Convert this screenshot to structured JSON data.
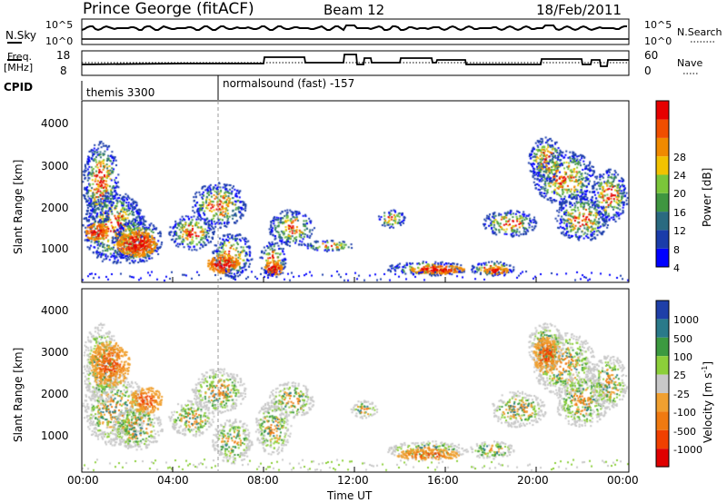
{
  "header": {
    "station": "Prince George (fitACF)",
    "beam": "Beam 12",
    "date": "18/Feb/2011"
  },
  "panels": {
    "nsky": {
      "left_label": "N.Sky",
      "top_tick": "10^5",
      "bottom_tick": "10^0",
      "right_top": "10^5",
      "right_bottom": "10^0",
      "right_label": "N.Search"
    },
    "freq": {
      "left_label_1": "Freq.",
      "left_label_2": "[MHz]",
      "top_tick": "18",
      "bottom_tick": "8",
      "right_top": "60",
      "right_bottom": "0",
      "right_label": "Nave"
    },
    "cpid": {
      "label": "CPID",
      "modes": [
        "themis 3300",
        "normalsound (fast) -157"
      ]
    }
  },
  "chart_data": [
    {
      "type": "heatmap",
      "title": "Power",
      "ylabel": "Slant Range [km]",
      "xlabel": "Time UT",
      "ylim": [
        180,
        4600
      ],
      "y_ticks": [
        "1000",
        "2000",
        "3000",
        "4000"
      ],
      "x_ticks": [
        "00:00",
        "04:00",
        "08:00",
        "12:00",
        "16:00",
        "20:00",
        "00:00"
      ],
      "colorbar_label": "Power [dB]",
      "colorbar_ticks": [
        "4",
        "8",
        "12",
        "16",
        "20",
        "24",
        "28"
      ],
      "colorbar_colors": [
        "#0000ff",
        "#1a3caa",
        "#2a6a80",
        "#3f9640",
        "#7bc63a",
        "#f2c200",
        "#f08a00",
        "#f04e00",
        "#e60000"
      ]
    },
    {
      "type": "heatmap",
      "title": "Velocity",
      "ylabel": "Slant Range [km]",
      "xlabel": "Time UT",
      "ylim": [
        180,
        4600
      ],
      "y_ticks": [
        "1000",
        "2000",
        "3000",
        "4000"
      ],
      "x_ticks": [
        "00:00",
        "04:00",
        "08:00",
        "12:00",
        "16:00",
        "20:00",
        "00:00"
      ],
      "colorbar_label": "Velocity",
      "colorbar_unit": "[m s",
      "colorbar_unit_exp": "-1",
      "colorbar_unit_end": "]",
      "colorbar_ticks": [
        "1000",
        "500",
        "100",
        "25",
        "-25",
        "-100",
        "-500",
        "-1000"
      ],
      "colorbar_colors": [
        "#1f3fa8",
        "#2a7a8a",
        "#3c9a40",
        "#8ccf3a",
        "#c8c8c8",
        "#f0a030",
        "#f07a10",
        "#f04000",
        "#e00000"
      ]
    }
  ],
  "xlabel": "Time UT"
}
